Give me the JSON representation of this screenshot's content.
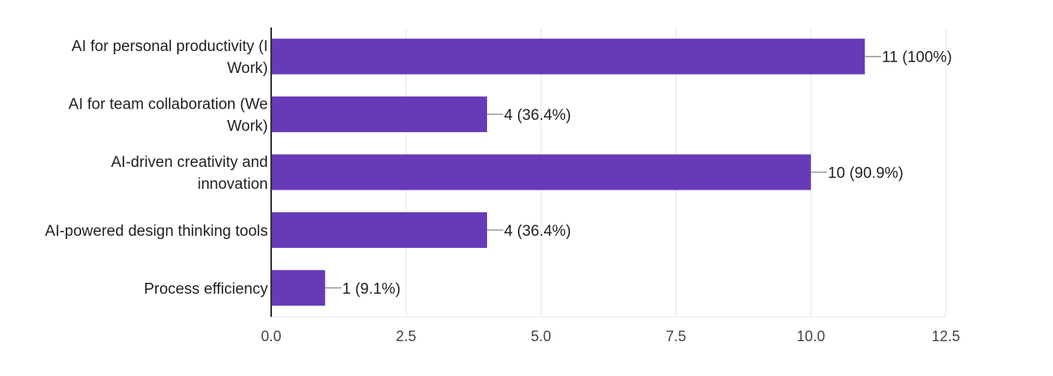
{
  "chart_data": {
    "type": "bar",
    "orientation": "horizontal",
    "categories": [
      [
        "AI for personal productivity (I",
        "Work)"
      ],
      [
        "AI for team collaboration (We",
        "Work)"
      ],
      [
        "AI-driven creativity and",
        "innovation"
      ],
      [
        "AI-powered design thinking tools"
      ],
      [
        "Process efficiency"
      ]
    ],
    "values": [
      11,
      4,
      10,
      4,
      1
    ],
    "data_labels": [
      "11 (100%)",
      "4 (36.4%)",
      "10 (90.9%)",
      "4 (36.4%)",
      "1 (9.1%)"
    ],
    "xlim": [
      0,
      12.5
    ],
    "x_ticks": [
      0,
      2.5,
      5,
      7.5,
      10,
      12.5
    ],
    "x_tick_labels": [
      "0.0",
      "2.5",
      "5.0",
      "7.5",
      "10.0",
      "12.5"
    ],
    "grid": true,
    "legend": "none",
    "colors": {
      "bar": "#673ab7",
      "grid": "#e6e6e6",
      "axis": "#333333",
      "connector": "#999999"
    }
  }
}
